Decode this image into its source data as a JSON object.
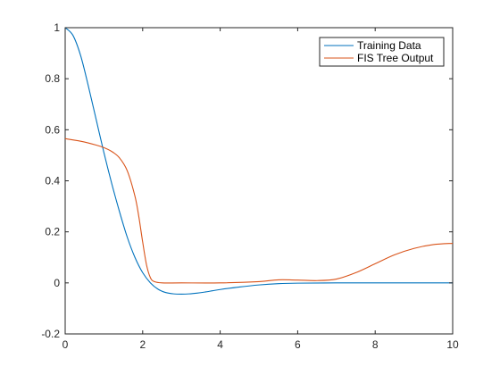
{
  "chart_data": {
    "type": "line",
    "title": "",
    "xlabel": "",
    "ylabel": "",
    "xlim": [
      0,
      10
    ],
    "ylim": [
      -0.2,
      1
    ],
    "xticks": [
      0,
      2,
      4,
      6,
      8,
      10
    ],
    "yticks": [
      -0.2,
      0,
      0.2,
      0.4,
      0.6,
      0.8,
      1
    ],
    "xtick_labels": [
      "0",
      "2",
      "4",
      "6",
      "8",
      "10"
    ],
    "ytick_labels": [
      "-0.2",
      "0",
      "0.2",
      "0.4",
      "0.6",
      "0.8",
      "1"
    ],
    "grid": false,
    "legend_position": "top-right",
    "series": [
      {
        "name": "Training Data",
        "color": "#0072BD",
        "x": [
          0,
          0.2,
          0.4,
          0.6,
          0.8,
          1.0,
          1.2,
          1.4,
          1.6,
          1.8,
          2.0,
          2.2,
          2.4,
          2.6,
          2.8,
          3.0,
          3.2,
          3.4,
          3.6,
          3.8,
          4.0,
          4.5,
          5.0,
          5.5,
          6.0,
          7.0,
          8.0,
          9.0,
          10.0
        ],
        "y": [
          1.0,
          0.97,
          0.89,
          0.77,
          0.64,
          0.51,
          0.39,
          0.28,
          0.18,
          0.1,
          0.04,
          0.0,
          -0.025,
          -0.038,
          -0.043,
          -0.044,
          -0.043,
          -0.04,
          -0.036,
          -0.031,
          -0.026,
          -0.016,
          -0.008,
          -0.003,
          -0.001,
          0.0,
          0.0,
          0.0,
          0.0
        ]
      },
      {
        "name": "FIS Tree Output",
        "color": "#D95319",
        "x": [
          0,
          0.4,
          0.8,
          1.0,
          1.2,
          1.4,
          1.6,
          1.8,
          1.9,
          2.0,
          2.1,
          2.2,
          2.3,
          2.5,
          3.0,
          4.0,
          5.0,
          5.5,
          6.0,
          6.5,
          7.0,
          7.5,
          8.0,
          8.5,
          9.0,
          9.5,
          10.0
        ],
        "y": [
          0.565,
          0.555,
          0.54,
          0.53,
          0.515,
          0.49,
          0.44,
          0.34,
          0.26,
          0.16,
          0.07,
          0.02,
          0.005,
          0.0,
          0.0,
          0.0,
          0.005,
          0.012,
          0.011,
          0.009,
          0.015,
          0.04,
          0.075,
          0.11,
          0.135,
          0.15,
          0.155
        ]
      }
    ]
  }
}
